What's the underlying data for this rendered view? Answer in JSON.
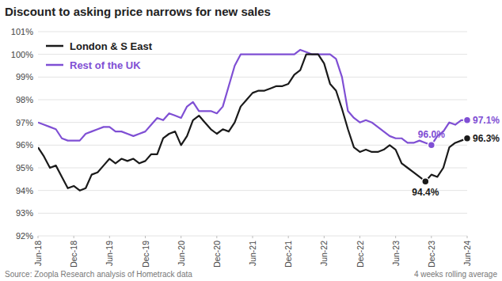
{
  "chart_data": {
    "type": "line",
    "title": "Discount to asking price narrows for new sales",
    "source": "Source: Zoopla Research analysis of Hometrack data",
    "note": "4 weeks rolling average",
    "categories": [
      "Jun-18",
      null,
      null,
      null,
      null,
      null,
      "Dec-18",
      null,
      null,
      null,
      null,
      null,
      "Jun-19",
      null,
      null,
      null,
      null,
      null,
      "Dec-19",
      null,
      null,
      null,
      null,
      null,
      "Jun-20",
      null,
      null,
      null,
      null,
      null,
      "Dec-20",
      null,
      null,
      null,
      null,
      null,
      "Jun-21",
      null,
      null,
      null,
      null,
      null,
      "Dec-21",
      null,
      null,
      null,
      null,
      null,
      "Jun-22",
      null,
      null,
      null,
      null,
      null,
      "Dec-22",
      null,
      null,
      null,
      null,
      null,
      "Jun-23",
      null,
      null,
      null,
      null,
      null,
      "Dec-23",
      null,
      null,
      null,
      null,
      null,
      "Jun-24"
    ],
    "series": [
      {
        "name": "London & S East",
        "color": "#1a1a1a",
        "values": [
          95.9,
          95.5,
          95.0,
          95.1,
          94.6,
          94.1,
          94.2,
          94.0,
          94.1,
          94.7,
          94.8,
          95.1,
          95.4,
          95.2,
          95.4,
          95.3,
          95.4,
          95.2,
          95.3,
          95.6,
          95.6,
          96.3,
          96.5,
          96.6,
          96.0,
          96.4,
          97.1,
          97.3,
          97.0,
          96.7,
          96.5,
          96.7,
          96.6,
          97.0,
          97.7,
          98.0,
          98.3,
          98.4,
          98.4,
          98.5,
          98.6,
          98.6,
          98.7,
          99.1,
          99.3,
          100.0,
          100.0,
          100.0,
          99.6,
          98.7,
          98.4,
          97.6,
          96.7,
          95.9,
          95.7,
          95.8,
          95.7,
          95.7,
          95.8,
          96.0,
          95.8,
          95.2,
          95.0,
          94.8,
          94.6,
          94.4,
          94.7,
          94.6,
          95.0,
          95.9,
          96.1,
          96.2,
          96.3
        ],
        "value_labels": [
          null,
          null,
          null,
          null,
          null,
          null,
          null,
          null,
          null,
          null,
          null,
          null,
          null,
          null,
          null,
          null,
          null,
          null,
          null,
          null,
          null,
          null,
          null,
          null,
          null,
          null,
          null,
          null,
          null,
          null,
          null,
          null,
          null,
          null,
          null,
          null,
          null,
          null,
          null,
          null,
          null,
          null,
          null,
          null,
          null,
          null,
          null,
          null,
          null,
          null,
          null,
          null,
          null,
          null,
          null,
          null,
          null,
          null,
          null,
          null,
          null,
          null,
          null,
          null,
          null,
          "94.4%",
          null,
          null,
          null,
          null,
          null,
          null,
          "96.3%"
        ]
      },
      {
        "name": "Rest of the UK",
        "color": "#7f4fd4",
        "values": [
          97.0,
          96.9,
          96.8,
          96.7,
          96.3,
          96.2,
          96.2,
          96.2,
          96.5,
          96.6,
          96.7,
          96.8,
          96.8,
          96.6,
          96.6,
          96.5,
          96.4,
          96.5,
          96.6,
          96.9,
          97.2,
          97.1,
          97.4,
          97.3,
          97.2,
          97.7,
          97.9,
          97.5,
          97.5,
          97.5,
          97.4,
          97.7,
          98.6,
          99.5,
          100.0,
          100.0,
          100.0,
          100.0,
          100.0,
          100.0,
          100.0,
          100.0,
          100.0,
          100.0,
          100.2,
          100.1,
          100.0,
          100.0,
          100.0,
          100.0,
          99.8,
          99.0,
          97.5,
          97.2,
          97.0,
          97.1,
          97.0,
          96.8,
          96.6,
          96.4,
          96.3,
          96.3,
          96.1,
          96.1,
          96.2,
          96.1,
          96.0,
          96.4,
          96.6,
          97.0,
          96.9,
          97.1,
          97.1
        ],
        "value_labels": [
          null,
          null,
          null,
          null,
          null,
          null,
          null,
          null,
          null,
          null,
          null,
          null,
          null,
          null,
          null,
          null,
          null,
          null,
          null,
          null,
          null,
          null,
          null,
          null,
          null,
          null,
          null,
          null,
          null,
          null,
          null,
          null,
          null,
          null,
          null,
          null,
          null,
          null,
          null,
          null,
          null,
          null,
          null,
          null,
          null,
          null,
          null,
          null,
          null,
          null,
          null,
          null,
          null,
          null,
          null,
          null,
          null,
          null,
          null,
          null,
          null,
          null,
          null,
          null,
          null,
          null,
          "96.0%",
          null,
          null,
          null,
          null,
          null,
          "97.1%"
        ]
      }
    ],
    "ylim": [
      92,
      101
    ],
    "yticks": [
      {
        "value": 92,
        "label": "92%"
      },
      {
        "value": 93,
        "label": "93%"
      },
      {
        "value": 94,
        "label": "94%"
      },
      {
        "value": 95,
        "label": "95%"
      },
      {
        "value": 96,
        "label": "96%"
      },
      {
        "value": 97,
        "label": "97%"
      },
      {
        "value": 98,
        "label": "98%"
      },
      {
        "value": 99,
        "label": "99%"
      },
      {
        "value": 100,
        "label": "100%"
      },
      {
        "value": 101,
        "label": "101%"
      }
    ],
    "grid": true,
    "legend": "top-left"
  }
}
